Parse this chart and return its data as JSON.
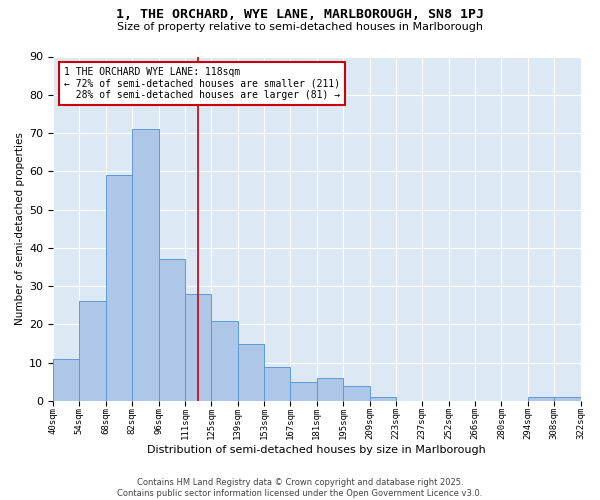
{
  "title": "1, THE ORCHARD, WYE LANE, MARLBOROUGH, SN8 1PJ",
  "subtitle": "Size of property relative to semi-detached houses in Marlborough",
  "xlabel": "Distribution of semi-detached houses by size in Marlborough",
  "ylabel": "Number of semi-detached properties",
  "bin_labels": [
    "40sqm",
    "54sqm",
    "68sqm",
    "82sqm",
    "96sqm",
    "111sqm",
    "125sqm",
    "139sqm",
    "153sqm",
    "167sqm",
    "181sqm",
    "195sqm",
    "209sqm",
    "223sqm",
    "237sqm",
    "252sqm",
    "266sqm",
    "280sqm",
    "294sqm",
    "308sqm",
    "322sqm"
  ],
  "bin_values": [
    11,
    26,
    59,
    71,
    37,
    28,
    21,
    15,
    9,
    5,
    6,
    4,
    1,
    0,
    0,
    0,
    0,
    0,
    1,
    1
  ],
  "property_size": "118sqm",
  "pct_smaller": 72,
  "count_smaller": 211,
  "pct_larger": 28,
  "count_larger": 81,
  "bar_color": "#aec6e8",
  "bar_edge_color": "#5b9bd5",
  "line_color": "#cc0000",
  "annotation_box_color": "#cc0000",
  "bg_color": "#dce9f5",
  "footer": "Contains HM Land Registry data © Crown copyright and database right 2025.\nContains public sector information licensed under the Open Government Licence v3.0.",
  "ylim": [
    0,
    90
  ],
  "yticks": [
    0,
    10,
    20,
    30,
    40,
    50,
    60,
    70,
    80,
    90
  ]
}
